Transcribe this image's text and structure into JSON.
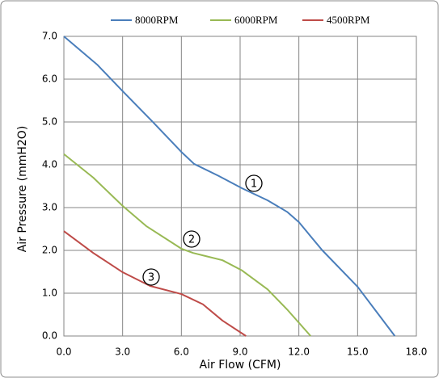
{
  "chart_data": {
    "type": "line",
    "x_label": "Air Flow (CFM)",
    "y_label": "Air Pressure (mmH2O)",
    "series": [
      {
        "name": "8000RPM",
        "color": "#4a7ebb",
        "x": [
          0,
          1.7,
          3.0,
          4.5,
          6.0,
          6.65,
          7.9,
          9.1,
          10.4,
          11.4,
          12.0,
          13.2,
          15.0,
          16.9
        ],
        "values": [
          7.0,
          6.34,
          5.72,
          5.02,
          4.3,
          4.02,
          3.74,
          3.45,
          3.17,
          2.9,
          2.66,
          2.0,
          1.15,
          0
        ]
      },
      {
        "name": "6000RPM",
        "color": "#98b954",
        "x": [
          0,
          1.5,
          3.0,
          4.2,
          6.0,
          6.6,
          8.1,
          9.1,
          10.4,
          11.4,
          12.6
        ],
        "values": [
          4.25,
          3.7,
          3.04,
          2.57,
          2.04,
          1.94,
          1.77,
          1.53,
          1.09,
          0.62,
          0
        ]
      },
      {
        "name": "4500RPM",
        "color": "#be4b48",
        "x": [
          0,
          1.5,
          3.0,
          4.4,
          6.0,
          7.1,
          8.1,
          9.3
        ],
        "values": [
          2.45,
          1.94,
          1.49,
          1.17,
          0.98,
          0.74,
          0.36,
          0
        ]
      }
    ],
    "annotations": [
      "1",
      "2",
      "3"
    ],
    "xlim": [
      0,
      18
    ],
    "xticks": [
      {
        "value": 0,
        "label": "0.0"
      },
      {
        "value": 3,
        "label": "3.0"
      },
      {
        "value": 6,
        "label": "6.0"
      },
      {
        "value": 9,
        "label": "9.0"
      },
      {
        "value": 12,
        "label": "12.0"
      },
      {
        "value": 15,
        "label": "15.0"
      },
      {
        "value": 18,
        "label": "18.0"
      }
    ],
    "ylim": [
      0,
      7
    ],
    "yticks": [
      {
        "value": 0,
        "label": "0.0"
      },
      {
        "value": 1,
        "label": "1.0"
      },
      {
        "value": 2,
        "label": "2.0"
      },
      {
        "value": 3,
        "label": "3.0"
      },
      {
        "value": 4,
        "label": "4.0"
      },
      {
        "value": 5,
        "label": "5.0"
      },
      {
        "value": 6,
        "label": "6.0"
      },
      {
        "value": 7,
        "label": "7.0"
      }
    ],
    "grid": true,
    "legend": "top"
  }
}
